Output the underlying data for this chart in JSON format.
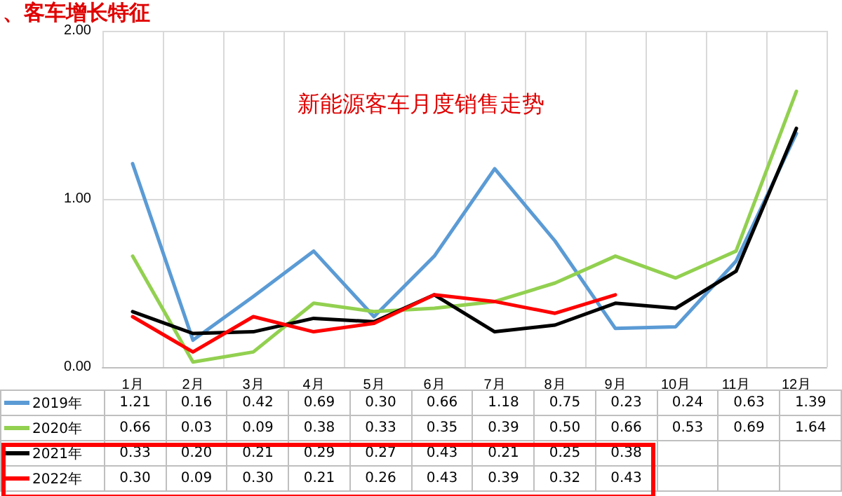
{
  "chart_data": {
    "type": "line",
    "title": "新能源客车月度销售走势",
    "annotations": [
      "、客车增长特征"
    ],
    "categories": [
      "1月",
      "2月",
      "3月",
      "4月",
      "5月",
      "6月",
      "7月",
      "8月",
      "9月",
      "10月",
      "11月",
      "12月"
    ],
    "series": [
      {
        "name": "2019年",
        "color": "#5b9bd5",
        "values": [
          1.21,
          0.16,
          0.42,
          0.69,
          0.3,
          0.66,
          1.18,
          0.75,
          0.23,
          0.24,
          0.63,
          1.39
        ],
        "value_labels": [
          "1.21",
          "0.16",
          "0.42",
          "0.69",
          "0.30",
          "0.66",
          "1.18",
          "0.75",
          "0.23",
          "0.24",
          "0.63",
          "1.39"
        ]
      },
      {
        "name": "2020年",
        "color": "#92d050",
        "values": [
          0.66,
          0.03,
          0.09,
          0.38,
          0.33,
          0.35,
          0.39,
          0.5,
          0.66,
          0.53,
          0.69,
          1.64
        ],
        "value_labels": [
          "0.66",
          "0.03",
          "0.09",
          "0.38",
          "0.33",
          "0.35",
          "0.39",
          "0.50",
          "0.66",
          "0.53",
          "0.69",
          "1.64"
        ]
      },
      {
        "name": "2021年",
        "color": "#000000",
        "values": [
          0.33,
          0.2,
          0.21,
          0.29,
          0.27,
          0.43,
          0.21,
          0.25,
          0.38,
          0.35,
          0.57,
          1.42
        ],
        "value_labels": [
          "0.33",
          "0.20",
          "0.21",
          "0.29",
          "0.27",
          "0.43",
          "0.21",
          "0.25",
          "0.38",
          null,
          null,
          null
        ]
      },
      {
        "name": "2022年",
        "color": "#ff0000",
        "values": [
          0.3,
          0.09,
          0.3,
          0.21,
          0.26,
          0.43,
          0.39,
          0.32,
          0.43,
          null,
          null,
          null
        ],
        "value_labels": [
          "0.30",
          "0.09",
          "0.30",
          "0.21",
          "0.26",
          "0.43",
          "0.39",
          "0.32",
          "0.43",
          null,
          null,
          null
        ]
      }
    ],
    "ylim": [
      0,
      2
    ],
    "yticks": [
      {
        "value": 0,
        "label": "0.00"
      },
      {
        "value": 1,
        "label": "1.00"
      },
      {
        "value": 2,
        "label": "2.00"
      }
    ],
    "grid": true,
    "legend": "bottom",
    "marker": "none",
    "line_style": "solid"
  }
}
